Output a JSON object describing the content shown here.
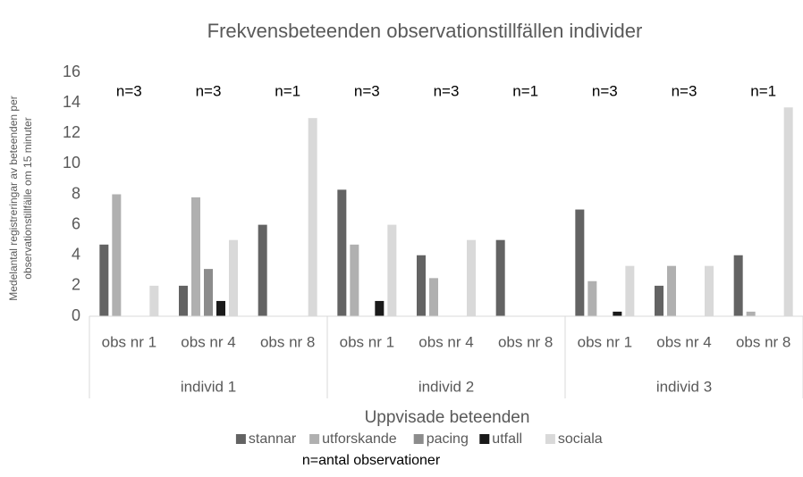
{
  "chart_data": {
    "type": "bar",
    "title": "Frekvensbeteenden observationstillfällen individer",
    "y_label": [
      "Medelantal registreringar av beteenden per",
      "observationstillfälle om 15 minuter"
    ],
    "x_label": "Uppvisade beteenden",
    "note": "n=antal observationer",
    "categories": [
      "obs nr 1",
      "obs nr 4",
      "obs nr 8",
      "obs nr 1",
      "obs nr 4",
      "obs nr 8",
      "obs nr 1",
      "obs nr 4",
      "obs nr 8"
    ],
    "groups": [
      "individ 1",
      "individ 2",
      "individ 3"
    ],
    "annotations": [
      "n=3",
      "n=3",
      "n=1",
      "n=3",
      "n=3",
      "n=1",
      "n=3",
      "n=3",
      "n=1"
    ],
    "series": [
      {
        "name": "stannar",
        "color": "#636363",
        "values": [
          4.7,
          2,
          6,
          8.3,
          4,
          5,
          7,
          2,
          4
        ]
      },
      {
        "name": "utforskande",
        "color": "#b0b0b0",
        "values": [
          8,
          7.8,
          0,
          4.7,
          2.5,
          0,
          2.3,
          3.3,
          0.3
        ]
      },
      {
        "name": "pacing",
        "color": "#8c8c8c",
        "values": [
          0,
          3.1,
          0,
          0,
          0,
          0,
          0,
          0,
          0
        ]
      },
      {
        "name": "utfall",
        "color": "#1a1a1a",
        "values": [
          0,
          1,
          0,
          1,
          0,
          0,
          0.3,
          0,
          0
        ]
      },
      {
        "name": "sociala",
        "color": "#d9d9d9",
        "values": [
          2,
          5,
          13,
          6,
          5,
          0,
          3.3,
          3.3,
          13.7
        ]
      }
    ],
    "ylim": [
      0,
      16
    ],
    "yticks": [
      0,
      2,
      4,
      6,
      8,
      10,
      12,
      14,
      16
    ],
    "grid": false
  }
}
